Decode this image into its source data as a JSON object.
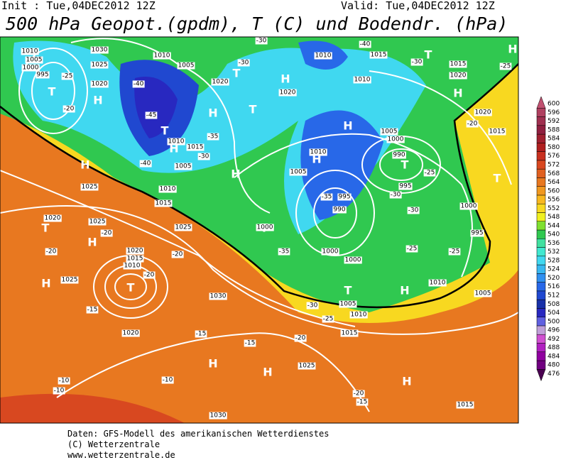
{
  "header": {
    "init": "Init : Tue,04DEC2012 12Z",
    "valid": "Valid: Tue,04DEC2012 12Z",
    "title": "500 hPa Geopot.(gpdm), T (C) und Bodendr. (hPa)"
  },
  "footer": [
    "Daten: GFS-Modell des amerikanischen Wetterdienstes",
    "(C) Wetterzentrale",
    "www.wetterzentrale.de"
  ],
  "colorbar": {
    "ticks": [
      476,
      480,
      484,
      488,
      492,
      496,
      500,
      504,
      508,
      512,
      516,
      520,
      524,
      528,
      532,
      536,
      540,
      544,
      548,
      552,
      556,
      560,
      564,
      568,
      572,
      576,
      580,
      584,
      588,
      592,
      596,
      600
    ],
    "colors": [
      "#4a0050",
      "#700080",
      "#9000a0",
      "#b020c0",
      "#d050d0",
      "#c0a0d8",
      "#6060e0",
      "#2828c0",
      "#1830a8",
      "#2048d0",
      "#2868e8",
      "#3090f0",
      "#38b8f0",
      "#40d8f0",
      "#40e8d0",
      "#40e0a0",
      "#30c850",
      "#80e030",
      "#f0f020",
      "#f8d820",
      "#f8b820",
      "#f09820",
      "#e87820",
      "#e06020",
      "#d84820",
      "#c83020",
      "#b02020",
      "#a02030",
      "#902040",
      "#a03050",
      "#b04060",
      "#c05070"
    ]
  },
  "highs_lows": [
    "T",
    "H",
    "T",
    "H",
    "T",
    "T",
    "H",
    "H",
    "H",
    "H",
    "H",
    "T",
    "T",
    "H",
    "H",
    "T",
    "H",
    "H",
    "T",
    "H",
    "H",
    "T",
    "H",
    "H",
    "T",
    "H",
    "T"
  ],
  "isobar_labels": [
    "1010",
    "1005",
    "1000",
    "995",
    "1030",
    "1025",
    "1020",
    "1010",
    "1005",
    "1020",
    "1010",
    "1015",
    "1005",
    "1010",
    "1015",
    "1025",
    "1020",
    "1025",
    "1025",
    "1020",
    "1015",
    "1010",
    "1025",
    "1020",
    "1030",
    "1025",
    "1030",
    "1015",
    "1005",
    "1000",
    "990",
    "995",
    "1010",
    "1005",
    "995",
    "990",
    "1000",
    "1000",
    "1005",
    "1010",
    "1015",
    "1010",
    "1005",
    "1000",
    "995",
    "1015",
    "1020",
    "1015",
    "1020",
    "1010",
    "1015",
    "1010",
    "1020",
    "1000"
  ],
  "isotherm_labels": [
    "-25",
    "-20",
    "-40",
    "-45",
    "-35",
    "-30",
    "-40",
    "-30",
    "-30",
    "-20",
    "-20",
    "-20",
    "-15",
    "-20",
    "-15",
    "-15",
    "-20",
    "-10",
    "-10",
    "-10",
    "-20",
    "-15",
    "-35",
    "-35",
    "-30",
    "-30",
    "-25",
    "-25",
    "-25",
    "-20",
    "-25",
    "-30",
    "-40",
    "-30",
    "-25"
  ]
}
